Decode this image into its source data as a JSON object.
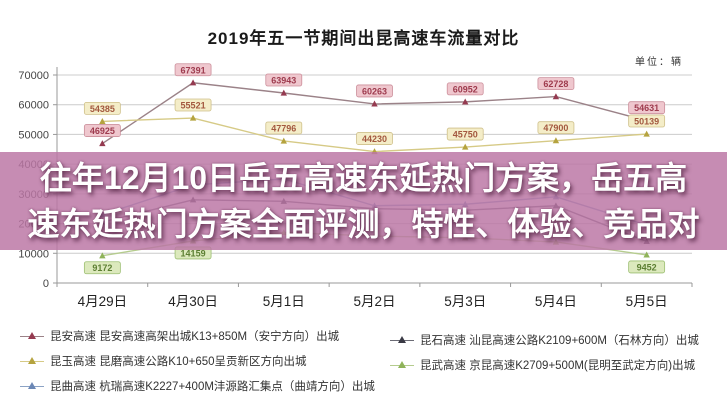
{
  "title": "2019年五一节期间出昆高速车流量对比",
  "unit_label": "单位：辆",
  "overlay_banner": {
    "lines": [
      "往年12月10日岳五高速东延热门方案，岳五高",
      "速东延热门方案全面评测，特性、体验、竞品对"
    ],
    "bg_color": "#bb76a5",
    "text_color": "#ffffff"
  },
  "chart_data": {
    "type": "line",
    "title": "2019年五一节期间出昆高速车流量对比",
    "unit": "辆",
    "categories": [
      "4月29日",
      "4月30日",
      "5月1日",
      "5月2日",
      "5月3日",
      "5月4日",
      "5月5日"
    ],
    "ylim": [
      0,
      70000
    ],
    "ytick_interval": 10000,
    "grid": true,
    "legend_position": "bottom",
    "series": [
      {
        "name": "昆安高速",
        "line_color": "#9b8288",
        "marker_color": "#953a50",
        "label_bg": "#efc7ce",
        "label_border": "#cc8f9b",
        "label_color": "#9e3b4e",
        "label_position": "above",
        "values": [
          46925,
          67391,
          63943,
          60263,
          60952,
          62728,
          54631
        ],
        "labels_visible": [
          1,
          1,
          1,
          1,
          1,
          1,
          1
        ]
      },
      {
        "name": "昆玉高速",
        "line_color": "#d6ca86",
        "marker_color": "#b5a33f",
        "label_bg": "#f4edc8",
        "label_border": "#cfc08a",
        "label_color": "#a3583f",
        "label_position": "above",
        "values": [
          54385,
          55521,
          47796,
          44230,
          45750,
          47900,
          50139
        ],
        "labels_visible": [
          1,
          1,
          1,
          1,
          1,
          1,
          1
        ]
      },
      {
        "name": "昆曲高速",
        "line_color": "#8ca3c5",
        "marker_color": "#6b87b5",
        "label_bg": "#d4def0",
        "label_border": "#9fb3d6",
        "label_color": "#3f5d8f",
        "label_position": "above",
        "values": [
          23000,
          33000,
          35000,
          26000,
          26500,
          29000,
          19500
        ],
        "labels_visible": [
          0,
          0,
          0,
          0,
          0,
          0,
          0
        ],
        "estimated_due_to_overlay": true
      },
      {
        "name": "昆石高速",
        "line_color": "#6b6b75",
        "marker_color": "#3a3a45",
        "label_bg": "#d9d9de",
        "label_border": "#a5a5af",
        "label_color": "#33333d",
        "label_position": "above",
        "values": [
          20500,
          28000,
          27500,
          25000,
          24500,
          26000,
          14000
        ],
        "labels_visible": [
          0,
          0,
          0,
          0,
          0,
          0,
          0
        ],
        "estimated_due_to_overlay": true
      },
      {
        "name": "昆武高速",
        "line_color": "#b5cc8e",
        "marker_color": "#8fb35a",
        "label_bg": "#dce9bd",
        "label_border": "#9cbf72",
        "label_color": "#5d7f33",
        "label_position": "below",
        "values": [
          9172,
          14159,
          17000,
          15800,
          15200,
          13800,
          9452
        ],
        "labels_visible": [
          1,
          1,
          0,
          0,
          0,
          0,
          1
        ],
        "estimated_due_to_overlay": true
      }
    ]
  },
  "legend": {
    "left": [
      {
        "text": "昆安高速 昆安高速高架出城K13+850M（安宁方向）出城",
        "line_color": "#9b8288",
        "marker_color": "#953a50"
      },
      {
        "text": "昆玉高速 昆磨高速公路K10+650呈贡新区方向出城",
        "line_color": "#d6ca86",
        "marker_color": "#b5a33f"
      },
      {
        "text": "昆曲高速 杭瑞高速K2227+400M沣源路汇集点（曲靖方向）出城",
        "line_color": "#8ca3c5",
        "marker_color": "#6b87b5"
      }
    ],
    "right": [
      {
        "text": "昆石高速 汕昆高速公路K2109+600M（石林方向）出城",
        "line_color": "#6b6b75",
        "marker_color": "#3a3a45"
      },
      {
        "text": "昆武高速 京昆高速K2709+500M(昆明至武定方向)出城",
        "line_color": "#b5cc8e",
        "marker_color": "#8fb35a"
      }
    ]
  }
}
